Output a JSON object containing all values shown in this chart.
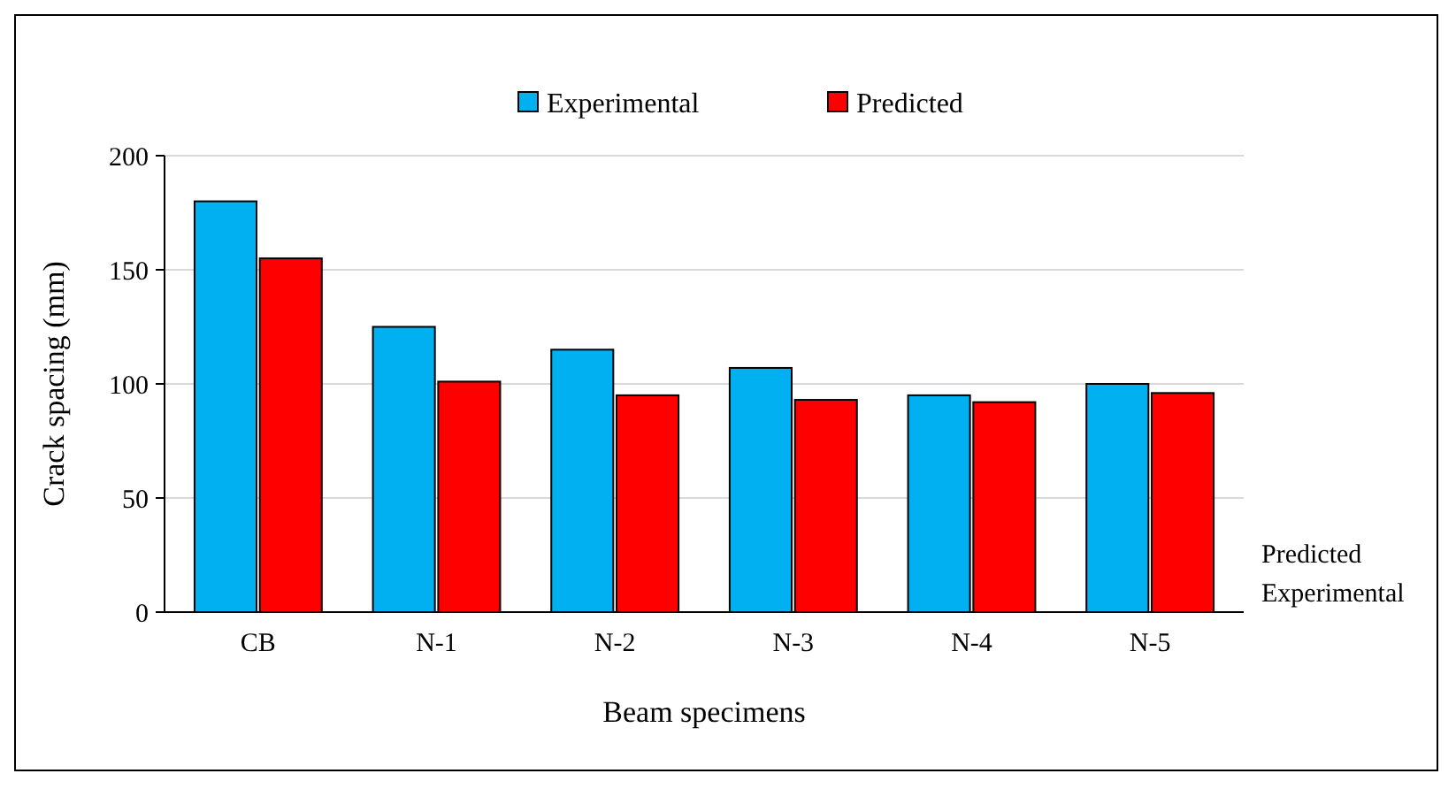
{
  "chart_data": {
    "type": "bar",
    "xlabel": "Beam specimens",
    "ylabel": "Crack spacing (mm)",
    "categories": [
      "CB",
      "N-1",
      "N-2",
      "N-3",
      "N-4",
      "N-5"
    ],
    "series": [
      {
        "name": "Experimental",
        "color": "#00b0f0",
        "values": [
          180,
          125,
          115,
          107,
          95,
          100
        ]
      },
      {
        "name": "Predicted",
        "color": "#ff0000",
        "values": [
          155,
          101,
          95,
          93,
          92,
          96
        ]
      }
    ],
    "ylim": [
      0,
      200
    ],
    "yticks": [
      0,
      50,
      100,
      150,
      200
    ],
    "grid": "y",
    "legend": "top"
  }
}
